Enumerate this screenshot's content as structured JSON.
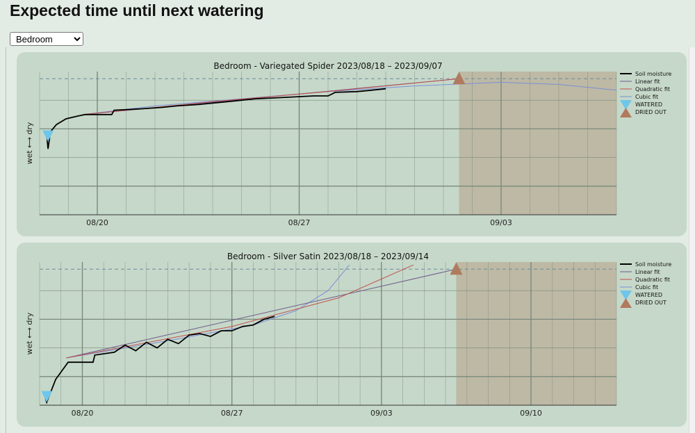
{
  "page": {
    "title": "Expected time until next watering",
    "room_select": {
      "selected": "Bedroom",
      "options": [
        "Bedroom"
      ]
    }
  },
  "colors": {
    "panel_bg": "#c6d8c9",
    "dried_region": "#bbb49f",
    "soil_moisture": "#000000",
    "linear_fit": "#6d5a8a",
    "quadratic_fit": "#c0504d",
    "cubic_fit": "#7b8fd6",
    "watered_marker": "#6ec6ea",
    "dried_marker": "#b07a5e",
    "grid": "#7a8a7c",
    "threshold_line": "#6a8a9a"
  },
  "chart_data": [
    {
      "type": "line",
      "title": "Bedroom - Variegated Spider    2023/08/18 – 2023/09/07",
      "ylabel": "wet ⟷ dry",
      "xlim": [
        "2023-08-18",
        "2023-09-07"
      ],
      "ylim": [
        0,
        1
      ],
      "x_ticks": [
        {
          "date": "2023-08-20",
          "label": "08/20"
        },
        {
          "date": "2023-08-27",
          "label": "08/27"
        },
        {
          "date": "2023-09-03",
          "label": "09/03"
        }
      ],
      "dry_threshold": 0.95,
      "grid": true,
      "legend_position": "outside-right",
      "legend": [
        "Soil moisture",
        "Linear fit",
        "Quadratic fit",
        "Cubic fit",
        "WATERED",
        "DRIED OUT"
      ],
      "dried_region_start": "2023-09-01T13:00",
      "watered_event": {
        "date": "2023-08-18T07:00",
        "level": 0.55
      },
      "dried_out_event": {
        "date": "2023-09-01T13:00",
        "level": 0.95
      },
      "soil_moisture": [
        [
          "2023-08-18T06:00",
          0.55
        ],
        [
          "2023-08-18T07:00",
          0.46
        ],
        [
          "2023-08-18T09:00",
          0.58
        ],
        [
          "2023-08-18T14:00",
          0.63
        ],
        [
          "2023-08-18T22:00",
          0.67
        ],
        [
          "2023-08-19T08:00",
          0.69
        ],
        [
          "2023-08-19T14:00",
          0.7
        ],
        [
          "2023-08-20T12:00",
          0.7
        ],
        [
          "2023-08-20T14:00",
          0.73
        ],
        [
          "2023-08-21T12:00",
          0.74
        ],
        [
          "2023-08-22T06:00",
          0.75
        ],
        [
          "2023-08-22T18:00",
          0.76
        ],
        [
          "2023-08-23T12:00",
          0.77
        ],
        [
          "2023-08-24T12:00",
          0.79
        ],
        [
          "2023-08-25T00:00",
          0.8
        ],
        [
          "2023-08-25T12:00",
          0.81
        ],
        [
          "2023-08-26T12:00",
          0.82
        ],
        [
          "2023-08-27T12:00",
          0.83
        ],
        [
          "2023-08-28T00:00",
          0.83
        ],
        [
          "2023-08-28T06:00",
          0.855
        ],
        [
          "2023-08-29T00:00",
          0.86
        ],
        [
          "2023-08-29T12:00",
          0.87
        ],
        [
          "2023-08-30T00:00",
          0.88
        ]
      ],
      "linear_fit": [
        [
          "2023-08-19T12:00",
          0.7
        ],
        [
          "2023-09-01T13:00",
          0.95
        ]
      ],
      "quadratic_fit": [
        [
          "2023-08-19T12:00",
          0.7
        ],
        [
          "2023-08-24T00:00",
          0.79
        ],
        [
          "2023-08-28T00:00",
          0.86
        ],
        [
          "2023-09-01T00:00",
          0.94
        ],
        [
          "2023-09-01T13:00",
          0.95
        ]
      ],
      "cubic_fit": [
        [
          "2023-08-19T12:00",
          0.7
        ],
        [
          "2023-08-22T00:00",
          0.76
        ],
        [
          "2023-08-25T00:00",
          0.81
        ],
        [
          "2023-08-28T00:00",
          0.86
        ],
        [
          "2023-08-31T00:00",
          0.9
        ],
        [
          "2023-09-03T00:00",
          0.925
        ],
        [
          "2023-09-05T00:00",
          0.91
        ],
        [
          "2023-09-07T00:00",
          0.87
        ]
      ]
    },
    {
      "type": "line",
      "title": "Bedroom - Silver Satin    2023/08/18 – 2023/09/14",
      "ylabel": "wet ⟷ dry",
      "xlim": [
        "2023-08-18",
        "2023-09-14"
      ],
      "ylim": [
        0,
        1
      ],
      "x_ticks": [
        {
          "date": "2023-08-20",
          "label": "08/20"
        },
        {
          "date": "2023-08-27",
          "label": "08/27"
        },
        {
          "date": "2023-09-03",
          "label": "09/03"
        },
        {
          "date": "2023-09-10",
          "label": "09/10"
        }
      ],
      "dry_threshold": 0.95,
      "grid": true,
      "legend_position": "outside-right",
      "legend": [
        "Soil moisture",
        "Linear fit",
        "Quadratic fit",
        "Cubic fit",
        "WATERED",
        "DRIED OUT"
      ],
      "dried_region_start": "2023-09-06T12:00",
      "watered_event": {
        "date": "2023-08-18T08:00",
        "level": 0.06
      },
      "dried_out_event": {
        "date": "2023-09-06T12:00",
        "level": 0.95
      },
      "soil_moisture": [
        [
          "2023-08-18T06:00",
          0.06
        ],
        [
          "2023-08-18T08:00",
          0.02
        ],
        [
          "2023-08-18T18:00",
          0.18
        ],
        [
          "2023-08-19T08:00",
          0.3
        ],
        [
          "2023-08-20T12:00",
          0.3
        ],
        [
          "2023-08-20T14:00",
          0.35
        ],
        [
          "2023-08-21T12:00",
          0.37
        ],
        [
          "2023-08-22T00:00",
          0.42
        ],
        [
          "2023-08-22T12:00",
          0.38
        ],
        [
          "2023-08-23T00:00",
          0.44
        ],
        [
          "2023-08-23T12:00",
          0.4
        ],
        [
          "2023-08-24T00:00",
          0.46
        ],
        [
          "2023-08-24T12:00",
          0.43
        ],
        [
          "2023-08-25T00:00",
          0.49
        ],
        [
          "2023-08-25T12:00",
          0.5
        ],
        [
          "2023-08-26T00:00",
          0.48
        ],
        [
          "2023-08-26T12:00",
          0.52
        ],
        [
          "2023-08-27T00:00",
          0.52
        ],
        [
          "2023-08-27T12:00",
          0.55
        ],
        [
          "2023-08-28T00:00",
          0.56
        ],
        [
          "2023-08-28T12:00",
          0.6
        ],
        [
          "2023-08-29T00:00",
          0.62
        ]
      ],
      "linear_fit": [
        [
          "2023-08-19T06:00",
          0.33
        ],
        [
          "2023-09-06T12:00",
          0.95
        ]
      ],
      "quadratic_fit": [
        [
          "2023-08-19T06:00",
          0.33
        ],
        [
          "2023-08-27T00:00",
          0.55
        ],
        [
          "2023-09-01T00:00",
          0.75
        ],
        [
          "2023-09-04T12:00",
          0.98
        ]
      ],
      "cubic_fit": [
        [
          "2023-08-19T06:00",
          0.33
        ],
        [
          "2023-08-24T00:00",
          0.45
        ],
        [
          "2023-08-28T00:00",
          0.56
        ],
        [
          "2023-08-30T00:00",
          0.66
        ],
        [
          "2023-08-31T12:00",
          0.8
        ],
        [
          "2023-09-01T12:00",
          0.98
        ]
      ]
    }
  ]
}
